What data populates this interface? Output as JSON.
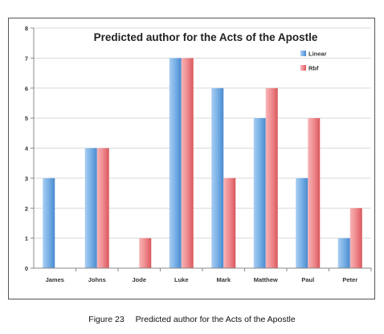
{
  "chart_data": {
    "type": "bar",
    "title": "Predicted author for the Acts of the Apostle",
    "categories": [
      "James",
      "Johns",
      "Jode",
      "Luke",
      "Mark",
      "Matthew",
      "Paul",
      "Peter"
    ],
    "series": [
      {
        "name": "Linear",
        "values": [
          3,
          4,
          0,
          7,
          6,
          5,
          3,
          1
        ],
        "color": "#5b9bd5"
      },
      {
        "name": "Rbf",
        "values": [
          0,
          4,
          1,
          7,
          3,
          6,
          5,
          2
        ],
        "color": "#e9686d"
      }
    ],
    "ylim": [
      0,
      8
    ],
    "yticks": [
      0,
      1,
      2,
      3,
      4,
      5,
      6,
      7,
      8
    ],
    "grid": true,
    "legend": "top-right"
  },
  "caption": {
    "label": "Figure 23",
    "text": "Predicted author for the Acts of the Apostle"
  }
}
